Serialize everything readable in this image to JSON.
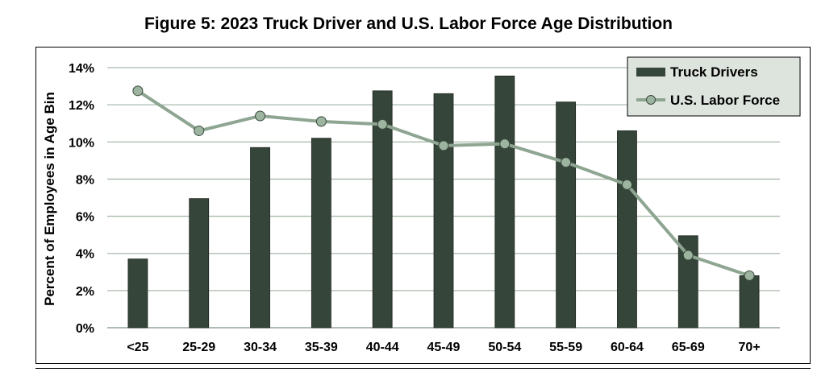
{
  "chart_data": {
    "type": "bar",
    "title": "Figure 5: 2023 Truck Driver and U.S. Labor Force Age Distribution",
    "ylabel": "Percent of Employees in Age Bin",
    "xlabel": "",
    "ylim": [
      0,
      14
    ],
    "yticks": [
      0,
      2,
      4,
      6,
      8,
      10,
      12,
      14
    ],
    "ytick_labels": [
      "0%",
      "2%",
      "4%",
      "6%",
      "8%",
      "10%",
      "12%",
      "14%"
    ],
    "grid": true,
    "legend_position": "top-right",
    "categories": [
      "<25",
      "25-29",
      "30-34",
      "35-39",
      "40-44",
      "45-49",
      "50-54",
      "55-59",
      "60-64",
      "65-69",
      "70+"
    ],
    "series": [
      {
        "name": "Truck Drivers",
        "kind": "bar",
        "color": "#364539",
        "values": [
          3.7,
          6.95,
          9.7,
          10.2,
          12.75,
          12.6,
          13.55,
          12.15,
          10.6,
          4.95,
          2.8
        ]
      },
      {
        "name": "U.S. Labor Force",
        "kind": "line",
        "color": "#8ea592",
        "marker_fill": "#9cb4a0",
        "values": [
          12.75,
          10.6,
          11.4,
          11.1,
          10.95,
          9.8,
          9.9,
          8.9,
          7.7,
          3.9,
          2.8
        ]
      }
    ]
  }
}
